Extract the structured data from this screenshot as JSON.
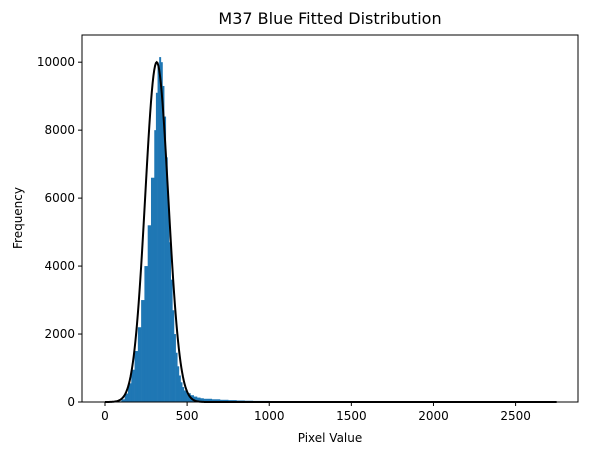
{
  "chart_data": {
    "type": "bar",
    "title": "M37 Blue Fitted Distribution",
    "xlabel": "Pixel Value",
    "ylabel": "Frequency",
    "xlim": [
      -140,
      2880
    ],
    "ylim": [
      0,
      10800
    ],
    "xticks": [
      0,
      500,
      1000,
      1500,
      2000,
      2500
    ],
    "yticks": [
      0,
      2000,
      4000,
      6000,
      8000,
      10000
    ],
    "grid": false,
    "series": [
      {
        "type": "histogram",
        "color": "#1f77b4",
        "bins": [
          [
            60,
            0
          ],
          [
            80,
            20
          ],
          [
            100,
            80
          ],
          [
            120,
            250
          ],
          [
            140,
            550
          ],
          [
            160,
            950
          ],
          [
            180,
            1500
          ],
          [
            200,
            2200
          ],
          [
            220,
            3000
          ],
          [
            240,
            4000
          ],
          [
            260,
            5200
          ],
          [
            280,
            6600
          ],
          [
            300,
            8000
          ],
          [
            310,
            9100
          ],
          [
            320,
            9900
          ],
          [
            330,
            10150
          ],
          [
            340,
            10000
          ],
          [
            350,
            9300
          ],
          [
            360,
            8400
          ],
          [
            370,
            7200
          ],
          [
            380,
            5900
          ],
          [
            390,
            4700
          ],
          [
            400,
            3600
          ],
          [
            410,
            2700
          ],
          [
            420,
            2000
          ],
          [
            430,
            1450
          ],
          [
            440,
            1050
          ],
          [
            450,
            780
          ],
          [
            460,
            580
          ],
          [
            470,
            440
          ],
          [
            480,
            340
          ],
          [
            500,
            260
          ],
          [
            520,
            200
          ],
          [
            540,
            160
          ],
          [
            560,
            130
          ],
          [
            580,
            110
          ],
          [
            600,
            95
          ],
          [
            650,
            80
          ],
          [
            700,
            65
          ],
          [
            750,
            55
          ],
          [
            800,
            45
          ],
          [
            850,
            38
          ],
          [
            900,
            32
          ],
          [
            1000,
            25
          ],
          [
            1100,
            20
          ],
          [
            1200,
            16
          ],
          [
            1400,
            12
          ],
          [
            1600,
            9
          ],
          [
            1800,
            7
          ],
          [
            2000,
            5
          ],
          [
            2300,
            4
          ],
          [
            2600,
            3
          ],
          [
            2740,
            0
          ]
        ]
      },
      {
        "type": "fitted-curve",
        "color": "#000000",
        "mean": 315,
        "sigma": 70,
        "peak": 10000,
        "x_range": [
          0,
          2750
        ]
      }
    ]
  }
}
